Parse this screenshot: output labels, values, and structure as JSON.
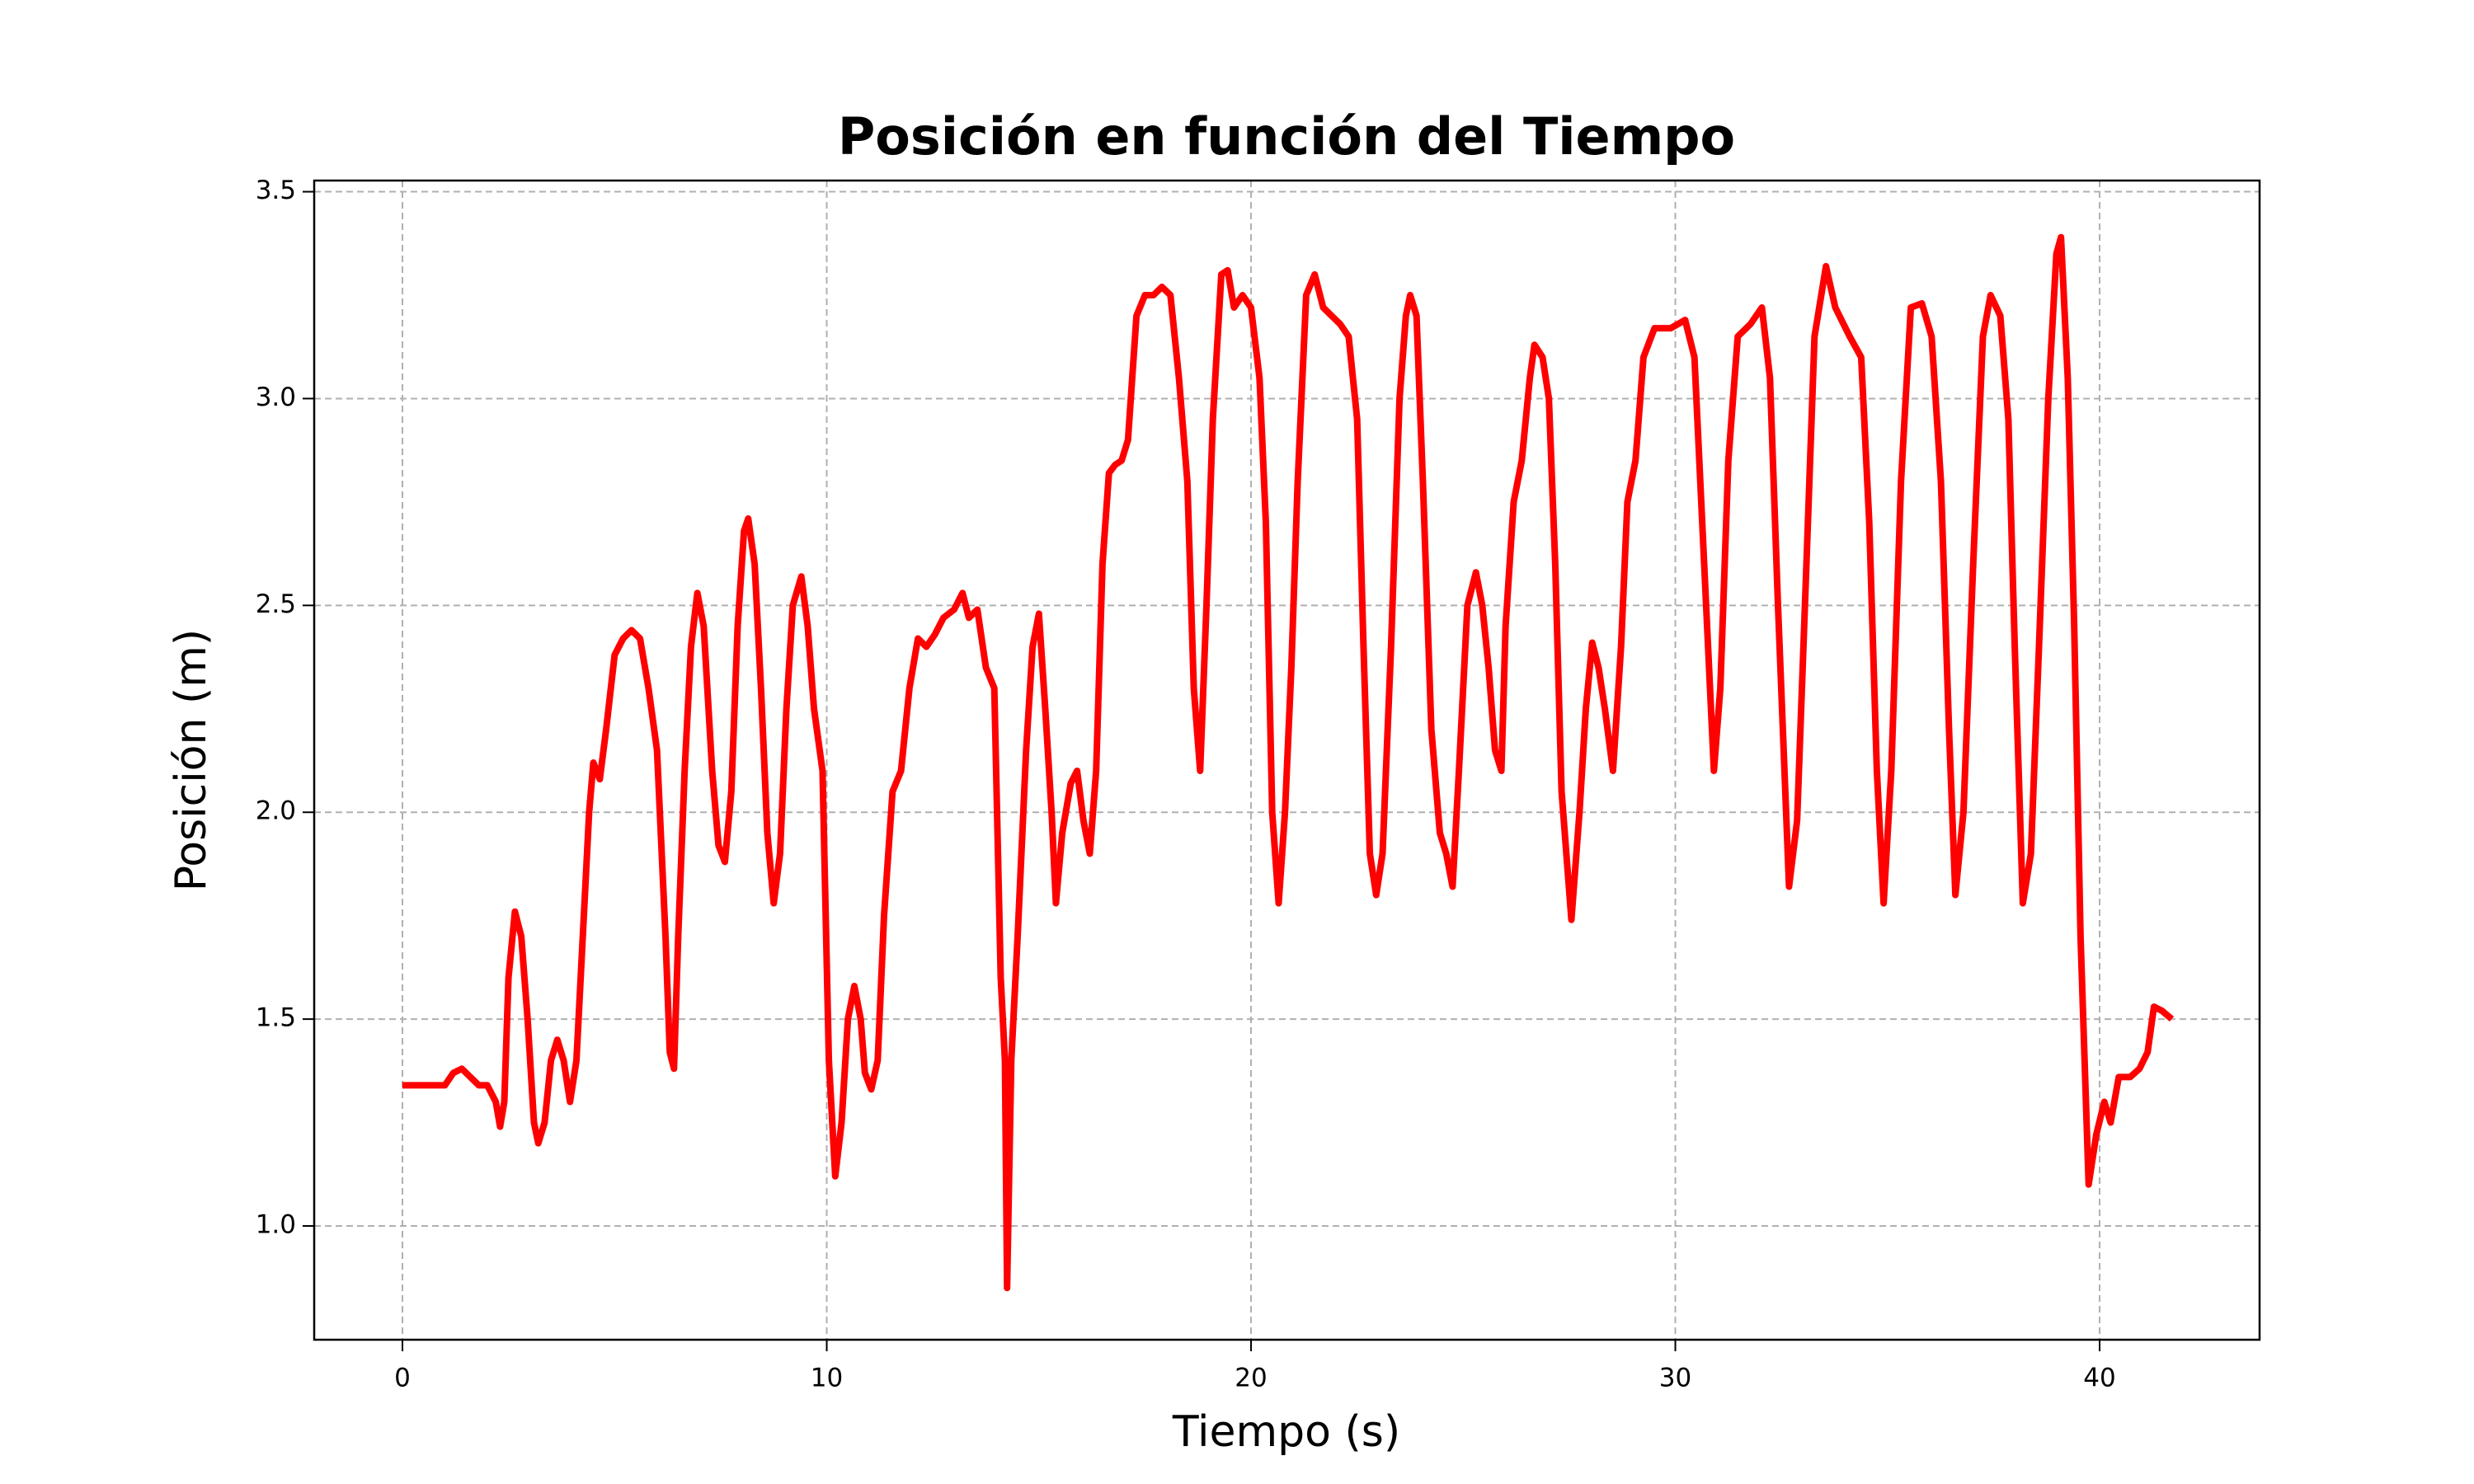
{
  "chart_data": {
    "type": "line",
    "title": "Posición en función del Tiempo",
    "xlabel": "Tiempo (s)",
    "ylabel": "Posición (m)",
    "color": "#ff0000",
    "grid": true,
    "xlim": [
      -2.08,
      43.77
    ],
    "ylim": [
      0.725,
      3.527
    ],
    "xticks": [
      0,
      10,
      20,
      30,
      40
    ],
    "yticks": [
      {
        "value": 1,
        "label": "1.0"
      },
      1.5,
      {
        "value": 2,
        "label": "2.0"
      },
      2.5,
      {
        "value": 3,
        "label": "3.0"
      },
      3.5
    ],
    "x": [
      0,
      0.5,
      1.0,
      1.2,
      1.4,
      1.6,
      1.8,
      2.0,
      2.2,
      2.3,
      2.4,
      2.5,
      2.65,
      2.8,
      2.95,
      3.1,
      3.2,
      3.35,
      3.5,
      3.65,
      3.8,
      3.95,
      4.1,
      4.25,
      4.4,
      4.5,
      4.65,
      4.8,
      5.0,
      5.2,
      5.4,
      5.6,
      5.8,
      6.0,
      6.2,
      6.3,
      6.4,
      6.5,
      6.65,
      6.8,
      6.95,
      7.1,
      7.3,
      7.45,
      7.6,
      7.75,
      7.9,
      8.05,
      8.15,
      8.3,
      8.45,
      8.6,
      8.75,
      8.9,
      9.05,
      9.2,
      9.4,
      9.55,
      9.7,
      9.9,
      10.05,
      10.2,
      10.35,
      10.5,
      10.65,
      10.8,
      10.9,
      11.05,
      11.2,
      11.35,
      11.55,
      11.75,
      11.95,
      12.15,
      12.35,
      12.55,
      12.75,
      13.0,
      13.2,
      13.35,
      13.55,
      13.75,
      13.95,
      14.1,
      14.2,
      14.25,
      14.35,
      14.5,
      14.7,
      14.85,
      15.0,
      15.15,
      15.3,
      15.4,
      15.55,
      15.75,
      15.9,
      16.05,
      16.2,
      16.35,
      16.5,
      16.65,
      16.8,
      16.95,
      17.1,
      17.3,
      17.5,
      17.7,
      17.9,
      18.1,
      18.3,
      18.5,
      18.65,
      18.8,
      18.95,
      19.1,
      19.3,
      19.45,
      19.6,
      19.8,
      20.0,
      20.2,
      20.35,
      20.5,
      20.65,
      20.8,
      20.95,
      21.1,
      21.3,
      21.5,
      21.7,
      21.9,
      22.1,
      22.3,
      22.5,
      22.65,
      22.8,
      22.95,
      23.1,
      23.3,
      23.5,
      23.65,
      23.75,
      23.9,
      24.05,
      24.25,
      24.45,
      24.6,
      24.75,
      24.9,
      25.1,
      25.3,
      25.45,
      25.6,
      25.75,
      25.9,
      26.0,
      26.19,
      26.38,
      26.57,
      26.68,
      26.87,
      27.02,
      27.17,
      27.32,
      27.55,
      27.74,
      27.89,
      28.04,
      28.19,
      28.34,
      28.53,
      28.72,
      28.87,
      29.06,
      29.25,
      29.51,
      29.89,
      30.23,
      30.45,
      30.68,
      30.91,
      31.06,
      31.25,
      31.47,
      31.77,
      32.04,
      32.23,
      32.42,
      32.68,
      32.87,
      33.09,
      33.28,
      33.55,
      33.77,
      34.11,
      34.38,
      34.57,
      34.75,
      34.91,
      35.09,
      35.32,
      35.55,
      35.81,
      36.04,
      36.26,
      36.45,
      36.6,
      36.79,
      37.02,
      37.25,
      37.43,
      37.66,
      37.85,
      38.0,
      38.19,
      38.38,
      38.57,
      38.79,
      38.98,
      39.09,
      39.25,
      39.4,
      39.55,
      39.74,
      39.92,
      40.11,
      40.26,
      40.45,
      40.72,
      40.94,
      41.13,
      41.28,
      41.47,
      41.7
    ],
    "values": [
      1.34,
      1.34,
      1.34,
      1.37,
      1.38,
      1.36,
      1.34,
      1.34,
      1.3,
      1.24,
      1.3,
      1.6,
      1.76,
      1.7,
      1.5,
      1.25,
      1.2,
      1.25,
      1.4,
      1.45,
      1.4,
      1.3,
      1.4,
      1.7,
      2.0,
      2.12,
      2.08,
      2.2,
      2.38,
      2.42,
      2.44,
      2.42,
      2.3,
      2.15,
      1.7,
      1.42,
      1.38,
      1.7,
      2.1,
      2.4,
      2.53,
      2.45,
      2.1,
      1.92,
      1.88,
      2.05,
      2.45,
      2.68,
      2.71,
      2.6,
      2.3,
      1.95,
      1.78,
      1.9,
      2.25,
      2.5,
      2.57,
      2.45,
      2.25,
      2.1,
      1.4,
      1.12,
      1.25,
      1.5,
      1.58,
      1.5,
      1.37,
      1.33,
      1.4,
      1.75,
      2.05,
      2.1,
      2.3,
      2.42,
      2.4,
      2.43,
      2.47,
      2.49,
      2.53,
      2.47,
      2.49,
      2.35,
      2.3,
      1.6,
      1.4,
      0.85,
      1.4,
      1.7,
      2.15,
      2.4,
      2.48,
      2.25,
      2.0,
      1.78,
      1.95,
      2.07,
      2.1,
      1.98,
      1.9,
      2.1,
      2.6,
      2.82,
      2.84,
      2.85,
      2.9,
      3.2,
      3.25,
      3.25,
      3.27,
      3.25,
      3.05,
      2.8,
      2.3,
      2.1,
      2.5,
      2.95,
      3.3,
      3.31,
      3.22,
      3.25,
      3.22,
      3.05,
      2.7,
      2.0,
      1.78,
      2.0,
      2.35,
      2.8,
      3.25,
      3.3,
      3.22,
      3.2,
      3.18,
      3.15,
      2.95,
      2.4,
      1.9,
      1.8,
      1.9,
      2.4,
      3.0,
      3.2,
      3.25,
      3.2,
      2.8,
      2.2,
      1.95,
      1.9,
      1.82,
      2.1,
      2.5,
      2.58,
      2.5,
      2.35,
      2.15,
      2.1,
      2.45,
      2.75,
      2.85,
      3.05,
      3.13,
      3.1,
      3.0,
      2.6,
      2.05,
      1.74,
      2.0,
      2.25,
      2.41,
      2.35,
      2.25,
      2.1,
      2.4,
      2.75,
      2.85,
      3.1,
      3.17,
      3.17,
      3.19,
      3.1,
      2.6,
      2.1,
      2.3,
      2.85,
      3.15,
      3.18,
      3.22,
      3.05,
      2.5,
      1.82,
      1.98,
      2.6,
      3.15,
      3.32,
      3.22,
      3.15,
      3.1,
      2.7,
      2.1,
      1.78,
      2.1,
      2.8,
      3.22,
      3.23,
      3.15,
      2.8,
      2.2,
      1.8,
      2.0,
      2.6,
      3.15,
      3.25,
      3.2,
      2.95,
      2.4,
      1.78,
      1.9,
      2.4,
      3.0,
      3.35,
      3.39,
      3.05,
      2.45,
      1.7,
      1.1,
      1.22,
      1.3,
      1.25,
      1.36,
      1.36,
      1.38,
      1.42,
      1.53,
      1.52,
      1.5
    ]
  }
}
